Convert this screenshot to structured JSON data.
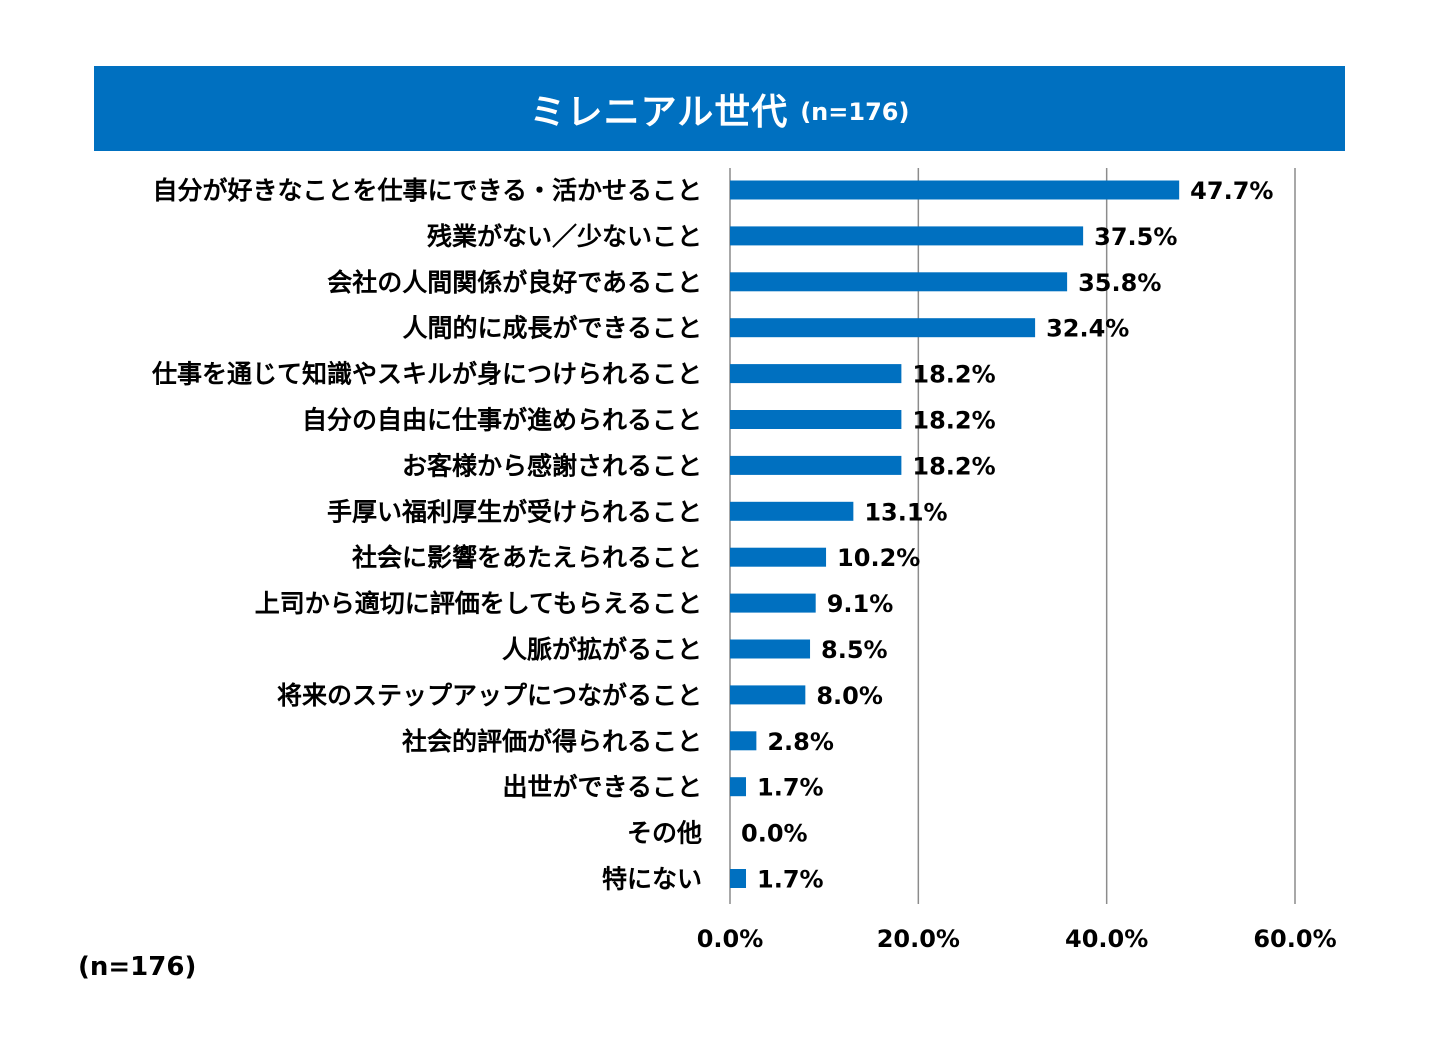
{
  "title": {
    "main": "ミレニアル世代",
    "sub": "(n=176)"
  },
  "footnote": "(n=176)",
  "colors": {
    "banner": "#0070c0",
    "bar": "#0070c0",
    "grid": "#8c8c8c"
  },
  "chart_data": {
    "type": "bar",
    "orientation": "horizontal",
    "title": "ミレニアル世代 (n=176)",
    "xlabel": "",
    "ylabel": "",
    "xlim": [
      0,
      60
    ],
    "ticks": [
      0,
      20,
      40,
      60
    ],
    "tick_labels": [
      "0.0%",
      "20.0%",
      "40.0%",
      "60.0%"
    ],
    "grid": true,
    "categories": [
      "自分が好きなことを仕事にできる・活かせること",
      "残業がない／少ないこと",
      "会社の人間関係が良好であること",
      "人間的に成長ができること",
      "仕事を通じて知識やスキルが身につけられること",
      "自分の自由に仕事が進められること",
      "お客様から感謝されること",
      "手厚い福利厚生が受けられること",
      "社会に影響をあたえられること",
      "上司から適切に評価をしてもらえること",
      "人脈が拡がること",
      "将来のステップアップにつながること",
      "社会的評価が得られること",
      "出世ができること",
      "その他",
      "特にない"
    ],
    "values": [
      47.7,
      37.5,
      35.8,
      32.4,
      18.2,
      18.2,
      18.2,
      13.1,
      10.2,
      9.1,
      8.5,
      8.0,
      2.8,
      1.7,
      0.0,
      1.7
    ],
    "value_labels": [
      "47.7%",
      "37.5%",
      "35.8%",
      "32.4%",
      "18.2%",
      "18.2%",
      "18.2%",
      "13.1%",
      "10.2%",
      "9.1%",
      "8.5%",
      "8.0%",
      "2.8%",
      "1.7%",
      "0.0%",
      "1.7%"
    ]
  }
}
